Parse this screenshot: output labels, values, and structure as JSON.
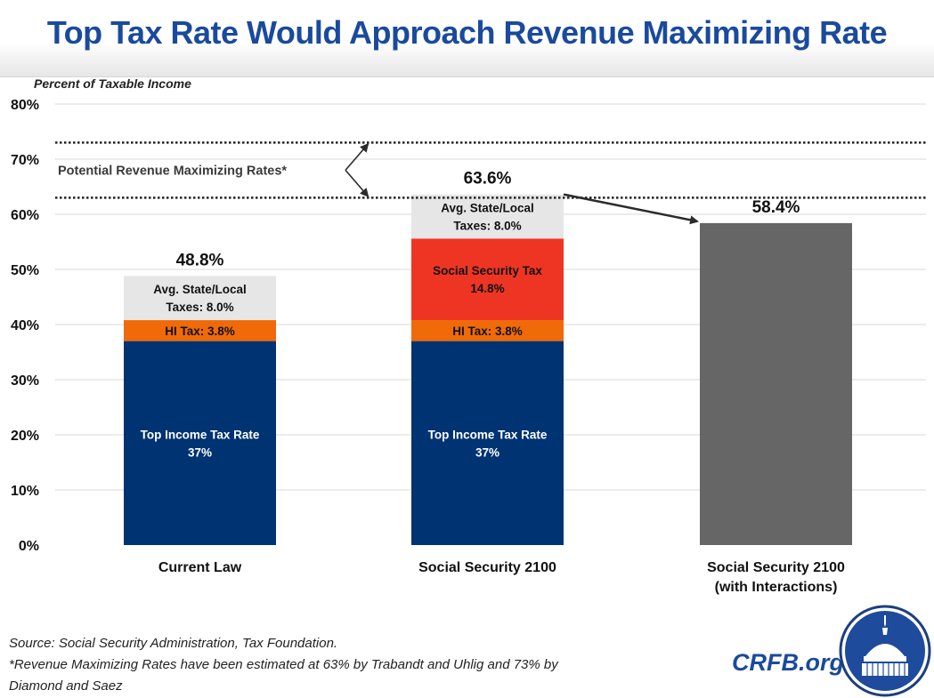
{
  "header": {
    "title": "Top Tax Rate Would Approach Revenue Maximizing Rate"
  },
  "colors": {
    "title": "#1a4a9c",
    "income_tax": "#003372",
    "hi_tax": "#f06a0a",
    "social_security_tax": "#ee3524",
    "state_local": "#e6e6e6",
    "interactions": "#666666",
    "gridline": "#d9d9d9"
  },
  "chart_data": {
    "type": "bar",
    "stacked": true,
    "title": "Top Tax Rate Would Approach Revenue Maximizing Rate",
    "ylabel": "Percent of Taxable Income",
    "xlabel": "",
    "ylim": [
      0,
      80
    ],
    "yticks": [
      0,
      10,
      20,
      30,
      40,
      50,
      60,
      70,
      80
    ],
    "ytick_labels": [
      "0%",
      "10%",
      "20%",
      "30%",
      "40%",
      "50%",
      "60%",
      "70%",
      "80%"
    ],
    "grid": true,
    "categories": [
      "Current Law",
      "Social Security 2100",
      "Social Security 2100 (with Interactions)"
    ],
    "category_lines": [
      [
        "Current Law"
      ],
      [
        "Social Security 2100"
      ],
      [
        "Social Security 2100",
        "(with Interactions)"
      ]
    ],
    "series": [
      {
        "name": "Top Income Tax Rate",
        "values": [
          37,
          37,
          0
        ],
        "labels": [
          [
            "Top Income Tax Rate",
            "37%"
          ],
          [
            "Top Income Tax Rate",
            "37%"
          ],
          []
        ],
        "color": "#003372",
        "text_color": "#ffffff"
      },
      {
        "name": "HI Tax",
        "values": [
          3.8,
          3.8,
          0
        ],
        "labels": [
          [
            "HI Tax: 3.8%"
          ],
          [
            "HI Tax: 3.8%"
          ],
          []
        ],
        "color": "#f06a0a",
        "text_color": "#111111"
      },
      {
        "name": "Social Security Tax",
        "values": [
          0,
          14.8,
          0
        ],
        "labels": [
          [],
          [
            "Social Security Tax",
            "14.8%"
          ],
          []
        ],
        "color": "#ee3524",
        "text_color": "#111111"
      },
      {
        "name": "Avg. State/Local Taxes",
        "values": [
          8.0,
          8.0,
          0
        ],
        "labels": [
          [
            "Avg. State/Local",
            "Taxes: 8.0%"
          ],
          [
            "Avg. State/Local",
            "Taxes: 8.0%"
          ],
          []
        ],
        "color": "#e6e6e6",
        "text_color": "#111111"
      },
      {
        "name": "Social Security 2100 with Interactions",
        "values": [
          0,
          0,
          58.4
        ],
        "labels": [
          [],
          [],
          []
        ],
        "color": "#666666",
        "text_color": "#ffffff"
      }
    ],
    "totals": [
      48.8,
      63.6,
      58.4
    ],
    "total_labels": [
      "48.8%",
      "63.6%",
      "58.4%"
    ],
    "reference_lines": [
      {
        "value": 73,
        "style": "dotted",
        "source": "Diamond and Saez"
      },
      {
        "value": 63,
        "style": "dotted",
        "source": "Trabandt and Uhlig"
      }
    ],
    "annotations": [
      {
        "text": "Potential Revenue Maximizing Rates*",
        "points_to": [
          73,
          63
        ]
      },
      {
        "type": "arrow",
        "from_category": "Social Security 2100",
        "to_category": "Social Security 2100 (with Interactions)"
      }
    ]
  },
  "footer": {
    "source": "Source: Social Security Administration, Tax Foundation.",
    "note_line1": "*Revenue Maximizing Rates have been estimated at 63% by Trabandt and Uhlig and 73% by",
    "note_line2": "Diamond and Saez"
  },
  "brand": {
    "site": "CRFB.org",
    "logo_icon": "capitol-dome-logo"
  }
}
